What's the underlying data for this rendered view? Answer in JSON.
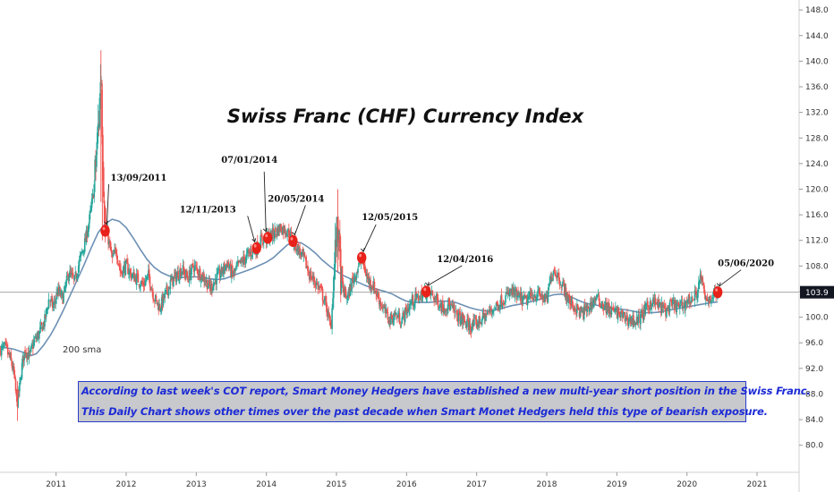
{
  "chart_data": {
    "type": "candlestick",
    "title": "Swiss Franc (CHF) Currency Index",
    "y_axis": {
      "ticks": [
        80.0,
        84.0,
        88.0,
        92.0,
        96.0,
        100.0,
        104.0,
        108.0,
        112.0,
        116.0,
        120.0,
        124.0,
        128.0,
        132.0,
        136.0,
        140.0,
        144.0,
        148.0
      ],
      "ylim": [
        78.0,
        149.0
      ],
      "side": "right"
    },
    "x_axis": {
      "ticks": [
        "2011",
        "2012",
        "2013",
        "2014",
        "2015",
        "2016",
        "2017",
        "2018",
        "2019",
        "2020",
        "2021"
      ],
      "xlim": [
        2010.2,
        2021.6
      ]
    },
    "last_price": "103.9",
    "series": [
      {
        "name": "",
        "kind": "price",
        "color_up": "#26a69a",
        "color_down": "#ef5350",
        "points": [
          [
            2010.2,
            95.0
          ],
          [
            2010.28,
            95.2
          ],
          [
            2010.36,
            93.0
          ],
          [
            2010.4,
            91.0
          ],
          [
            2010.44,
            86.5
          ],
          [
            2010.48,
            89.0
          ],
          [
            2010.52,
            93.0
          ],
          [
            2010.56,
            95.0
          ],
          [
            2010.62,
            93.8
          ],
          [
            2010.68,
            96.0
          ],
          [
            2010.76,
            97.5
          ],
          [
            2010.84,
            99.5
          ],
          [
            2010.9,
            103.0
          ],
          [
            2010.96,
            101.5
          ],
          [
            2011.02,
            104.0
          ],
          [
            2011.1,
            103.0
          ],
          [
            2011.18,
            107.0
          ],
          [
            2011.26,
            105.5
          ],
          [
            2011.34,
            109.0
          ],
          [
            2011.42,
            112.0
          ],
          [
            2011.48,
            115.5
          ],
          [
            2011.54,
            120.0
          ],
          [
            2011.58,
            126.0
          ],
          [
            2011.62,
            133.0
          ],
          [
            2011.64,
            140.0
          ],
          [
            2011.66,
            128.0
          ],
          [
            2011.7,
            113.5
          ],
          [
            2011.74,
            112.5
          ],
          [
            2011.8,
            109.0
          ],
          [
            2011.86,
            110.5
          ],
          [
            2011.92,
            107.0
          ],
          [
            2012.0,
            108.0
          ],
          [
            2012.08,
            106.5
          ],
          [
            2012.16,
            106.0
          ],
          [
            2012.24,
            105.0
          ],
          [
            2012.32,
            106.5
          ],
          [
            2012.4,
            103.0
          ],
          [
            2012.48,
            101.5
          ],
          [
            2012.56,
            103.5
          ],
          [
            2012.64,
            105.5
          ],
          [
            2012.72,
            106.5
          ],
          [
            2012.8,
            107.5
          ],
          [
            2012.88,
            106.0
          ],
          [
            2012.96,
            108.0
          ],
          [
            2013.04,
            107.0
          ],
          [
            2013.12,
            106.0
          ],
          [
            2013.2,
            104.5
          ],
          [
            2013.28,
            106.0
          ],
          [
            2013.36,
            107.0
          ],
          [
            2013.44,
            108.5
          ],
          [
            2013.52,
            106.5
          ],
          [
            2013.6,
            108.0
          ],
          [
            2013.68,
            109.0
          ],
          [
            2013.76,
            110.0
          ],
          [
            2013.86,
            110.8
          ],
          [
            2013.92,
            112.0
          ],
          [
            2014.02,
            112.4
          ],
          [
            2014.1,
            113.0
          ],
          [
            2014.2,
            114.0
          ],
          [
            2014.3,
            113.5
          ],
          [
            2014.38,
            111.9
          ],
          [
            2014.46,
            110.5
          ],
          [
            2014.54,
            109.0
          ],
          [
            2014.62,
            106.5
          ],
          [
            2014.7,
            105.5
          ],
          [
            2014.78,
            104.0
          ],
          [
            2014.86,
            101.5
          ],
          [
            2014.92,
            98.0
          ],
          [
            2014.98,
            110.0
          ],
          [
            2015.02,
            115.0
          ],
          [
            2015.06,
            106.0
          ],
          [
            2015.1,
            104.0
          ],
          [
            2015.16,
            103.0
          ],
          [
            2015.22,
            105.5
          ],
          [
            2015.3,
            107.5
          ],
          [
            2015.36,
            109.3
          ],
          [
            2015.44,
            106.0
          ],
          [
            2015.52,
            105.0
          ],
          [
            2015.6,
            103.0
          ],
          [
            2015.68,
            101.0
          ],
          [
            2015.76,
            99.5
          ],
          [
            2015.84,
            100.5
          ],
          [
            2015.92,
            99.5
          ],
          [
            2016.0,
            101.0
          ],
          [
            2016.08,
            102.5
          ],
          [
            2016.16,
            103.0
          ],
          [
            2016.28,
            104.0
          ],
          [
            2016.36,
            103.5
          ],
          [
            2016.44,
            102.5
          ],
          [
            2016.52,
            101.5
          ],
          [
            2016.6,
            102.0
          ],
          [
            2016.7,
            100.5
          ],
          [
            2016.8,
            99.5
          ],
          [
            2016.9,
            98.5
          ],
          [
            2017.0,
            99.0
          ],
          [
            2017.1,
            100.0
          ],
          [
            2017.2,
            101.0
          ],
          [
            2017.3,
            102.0
          ],
          [
            2017.4,
            103.0
          ],
          [
            2017.5,
            104.0
          ],
          [
            2017.6,
            103.0
          ],
          [
            2017.7,
            102.5
          ],
          [
            2017.8,
            103.5
          ],
          [
            2017.9,
            103.5
          ],
          [
            2018.0,
            102.5
          ],
          [
            2018.06,
            106.5
          ],
          [
            2018.1,
            107.5
          ],
          [
            2018.16,
            106.5
          ],
          [
            2018.24,
            104.5
          ],
          [
            2018.32,
            102.5
          ],
          [
            2018.4,
            101.5
          ],
          [
            2018.5,
            100.5
          ],
          [
            2018.6,
            101.5
          ],
          [
            2018.7,
            103.0
          ],
          [
            2018.8,
            102.0
          ],
          [
            2018.9,
            101.0
          ],
          [
            2019.0,
            100.8
          ],
          [
            2019.1,
            100.0
          ],
          [
            2019.2,
            99.5
          ],
          [
            2019.3,
            99.5
          ],
          [
            2019.4,
            101.0
          ],
          [
            2019.5,
            102.5
          ],
          [
            2019.6,
            101.8
          ],
          [
            2019.7,
            101.0
          ],
          [
            2019.8,
            102.0
          ],
          [
            2019.9,
            101.5
          ],
          [
            2020.0,
            102.5
          ],
          [
            2020.1,
            103.0
          ],
          [
            2020.16,
            104.5
          ],
          [
            2020.2,
            106.5
          ],
          [
            2020.26,
            102.5
          ],
          [
            2020.32,
            103.0
          ],
          [
            2020.38,
            103.5
          ],
          [
            2020.44,
            103.9
          ]
        ]
      },
      {
        "name": "200 sma",
        "kind": "line",
        "color": "#6d90b4",
        "points": [
          [
            2010.2,
            95.4
          ],
          [
            2010.4,
            95.0
          ],
          [
            2010.56,
            94.4
          ],
          [
            2010.64,
            94.0
          ],
          [
            2010.72,
            94.3
          ],
          [
            2010.82,
            95.6
          ],
          [
            2010.92,
            97.2
          ],
          [
            2011.0,
            98.8
          ],
          [
            2011.1,
            101.0
          ],
          [
            2011.2,
            103.4
          ],
          [
            2011.3,
            105.8
          ],
          [
            2011.4,
            108.2
          ],
          [
            2011.5,
            110.8
          ],
          [
            2011.6,
            113.2
          ],
          [
            2011.7,
            114.6
          ],
          [
            2011.8,
            115.3
          ],
          [
            2011.9,
            115.0
          ],
          [
            2012.0,
            114.0
          ],
          [
            2012.1,
            112.4
          ],
          [
            2012.2,
            110.6
          ],
          [
            2012.3,
            109.0
          ],
          [
            2012.4,
            107.8
          ],
          [
            2012.5,
            107.0
          ],
          [
            2012.6,
            106.5
          ],
          [
            2012.7,
            106.2
          ],
          [
            2012.8,
            106.2
          ],
          [
            2012.9,
            106.3
          ],
          [
            2013.0,
            106.3
          ],
          [
            2013.1,
            106.2
          ],
          [
            2013.2,
            106.0
          ],
          [
            2013.3,
            105.9
          ],
          [
            2013.4,
            106.0
          ],
          [
            2013.5,
            106.4
          ],
          [
            2013.6,
            106.8
          ],
          [
            2013.7,
            107.2
          ],
          [
            2013.8,
            107.6
          ],
          [
            2013.9,
            108.1
          ],
          [
            2014.0,
            108.6
          ],
          [
            2014.1,
            109.3
          ],
          [
            2014.2,
            110.3
          ],
          [
            2014.3,
            111.3
          ],
          [
            2014.4,
            111.8
          ],
          [
            2014.5,
            111.6
          ],
          [
            2014.6,
            110.9
          ],
          [
            2014.7,
            110.0
          ],
          [
            2014.8,
            108.9
          ],
          [
            2014.9,
            108.0
          ],
          [
            2015.0,
            107.2
          ],
          [
            2015.1,
            106.5
          ],
          [
            2015.2,
            106.0
          ],
          [
            2015.3,
            105.5
          ],
          [
            2015.4,
            105.0
          ],
          [
            2015.5,
            104.6
          ],
          [
            2015.6,
            104.3
          ],
          [
            2015.7,
            104.0
          ],
          [
            2015.8,
            103.6
          ],
          [
            2015.9,
            103.0
          ],
          [
            2016.0,
            102.5
          ],
          [
            2016.1,
            102.3
          ],
          [
            2016.2,
            102.3
          ],
          [
            2016.3,
            102.3
          ],
          [
            2016.4,
            102.4
          ],
          [
            2016.5,
            102.5
          ],
          [
            2016.6,
            102.5
          ],
          [
            2016.7,
            102.3
          ],
          [
            2016.8,
            101.9
          ],
          [
            2016.9,
            101.5
          ],
          [
            2017.0,
            101.2
          ],
          [
            2017.1,
            101.0
          ],
          [
            2017.2,
            101.0
          ],
          [
            2017.3,
            101.2
          ],
          [
            2017.4,
            101.5
          ],
          [
            2017.5,
            101.8
          ],
          [
            2017.6,
            102.0
          ],
          [
            2017.7,
            102.2
          ],
          [
            2017.8,
            102.5
          ],
          [
            2017.9,
            102.8
          ],
          [
            2018.0,
            103.2
          ],
          [
            2018.1,
            103.5
          ],
          [
            2018.2,
            103.6
          ],
          [
            2018.3,
            103.4
          ],
          [
            2018.4,
            102.9
          ],
          [
            2018.5,
            102.4
          ],
          [
            2018.6,
            102.1
          ],
          [
            2018.7,
            101.9
          ],
          [
            2018.8,
            101.7
          ],
          [
            2018.9,
            101.5
          ],
          [
            2019.0,
            101.3
          ],
          [
            2019.1,
            101.2
          ],
          [
            2019.2,
            101.0
          ],
          [
            2019.3,
            100.8
          ],
          [
            2019.4,
            100.7
          ],
          [
            2019.5,
            100.7
          ],
          [
            2019.6,
            100.8
          ],
          [
            2019.7,
            101.0
          ],
          [
            2019.8,
            101.2
          ],
          [
            2019.9,
            101.4
          ],
          [
            2020.0,
            101.6
          ],
          [
            2020.1,
            101.8
          ],
          [
            2020.2,
            102.0
          ],
          [
            2020.3,
            102.2
          ],
          [
            2020.44,
            102.4
          ]
        ]
      }
    ],
    "markers": [
      {
        "date": "13/09/2011",
        "x": 2011.7,
        "y": 113.5
      },
      {
        "date": "12/11/2013",
        "x": 2013.86,
        "y": 110.8
      },
      {
        "date": "07/01/2014",
        "x": 2014.02,
        "y": 112.4
      },
      {
        "date": "20/05/2014",
        "x": 2014.38,
        "y": 111.9
      },
      {
        "date": "12/05/2015",
        "x": 2015.36,
        "y": 109.3
      },
      {
        "date": "12/04/2016",
        "x": 2016.28,
        "y": 104.0
      },
      {
        "date": "05/06/2020",
        "x": 2020.44,
        "y": 103.9
      }
    ],
    "marker_color": "#e8211a",
    "annotation_box": {
      "lines": [
        "According to last week's COT report, Smart Money Hedgers have established a new multi-year short position in the Swiss Franc.",
        "This Daily Chart shows other times over the past decade when Smart Monet Hedgers held this type of bearish exposure."
      ],
      "text_color": "#1c2bd6",
      "background": "#c8c9cc",
      "border": "#2b3cc8"
    },
    "grid": false
  }
}
